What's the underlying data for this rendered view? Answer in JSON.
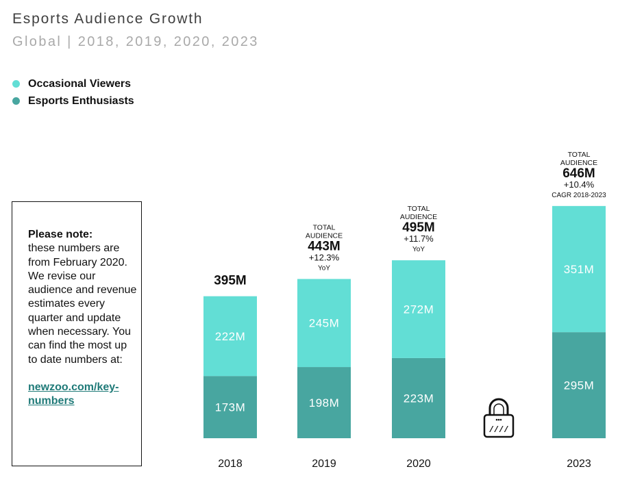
{
  "header": {
    "title": "Esports Audience Growth",
    "subtitle": "Global | 2018, 2019, 2020, 2023"
  },
  "colors": {
    "occasional": "#62ded5",
    "enthusiasts": "#48a6a0",
    "link": "#1f7a78"
  },
  "note": {
    "heading": "Please note:",
    "body": "these numbers are from February 2020. We revise our audience and revenue estimates every quarter and update when necessary. You can find the most up to date numbers at:",
    "link": "newzoo.com/key-numbers"
  },
  "icons": {
    "gap": "lock-icon"
  },
  "chart_data": {
    "type": "bar",
    "stacked": true,
    "categories": [
      "2018",
      "2019",
      "2020",
      "2023"
    ],
    "series": [
      {
        "name": "Esports Enthusiasts",
        "values": [
          173,
          198,
          223,
          295
        ],
        "labels": [
          "173M",
          "198M",
          "223M",
          "295M"
        ]
      },
      {
        "name": "Occasional Viewers",
        "values": [
          222,
          245,
          272,
          351
        ],
        "labels": [
          "222M",
          "245M",
          "272M",
          "351M"
        ]
      }
    ],
    "totals": [
      {
        "total": "395M"
      },
      {
        "caption": [
          "TOTAL",
          "AUDIENCE"
        ],
        "total": "443M",
        "growth": "+12.3%",
        "growth_note": "YoY"
      },
      {
        "caption": [
          "TOTAL",
          "AUDIENCE"
        ],
        "total": "495M",
        "growth": "+11.7%",
        "growth_note": "YoY"
      },
      {
        "caption": [
          "TOTAL",
          "AUDIENCE"
        ],
        "total": "646M",
        "growth": "+10.4%",
        "growth_note": "CAGR 2018-2023"
      }
    ],
    "legend": "top-left",
    "grid": false,
    "ylim": [
      0,
      700
    ]
  }
}
